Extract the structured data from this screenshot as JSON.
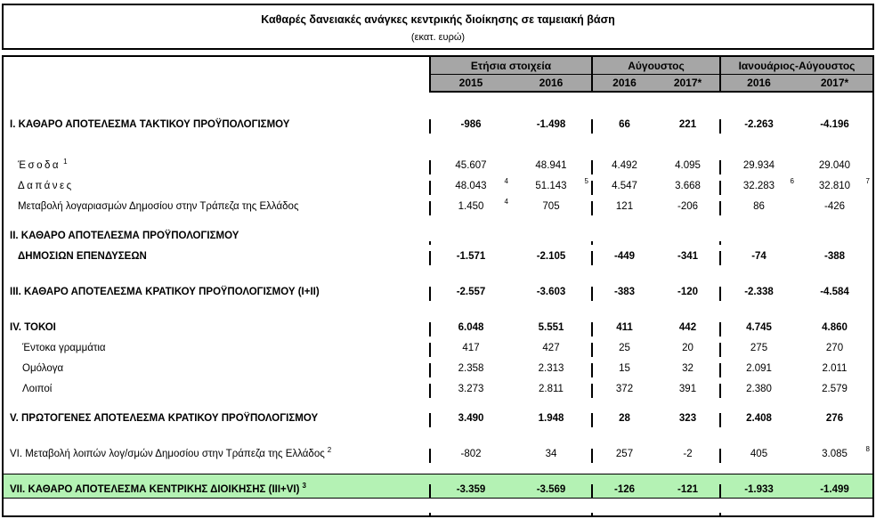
{
  "title": "Καθαρές δανειακές ανάγκες κεντρικής διοίκησης σε ταμειακή βάση",
  "subtitle": "(εκατ. ευρώ)",
  "colors": {
    "header_bg": "#a6a6a6",
    "highlight_green": "#b4f2b4"
  },
  "column_groups": [
    {
      "label": "Ετήσια στοιχεία",
      "years": [
        "2015",
        "2016"
      ]
    },
    {
      "label": "Αύγουστος",
      "years": [
        "2016",
        "2017*"
      ]
    },
    {
      "label": "Ιανουάριος-Αύγουστος",
      "years": [
        "2016",
        "2017*"
      ]
    }
  ],
  "rows": [
    {
      "label": "I. ΚΑΘΑΡΟ ΑΠΟΤΕΛΕΣΜΑ  ΤΑΚΤΙΚΟΥ ΠΡΟΫΠΟΛΟΓΙΣΜΟΥ",
      "bold": true,
      "gap": "xl",
      "values": [
        "-986",
        "-1.498",
        "66",
        "221",
        "-2.263",
        "-4.196"
      ]
    },
    {
      "label": "Έσοδα",
      "label_sup": "1",
      "indent": 1,
      "spaced": true,
      "gap": "xl",
      "values": [
        "45.607",
        "48.941",
        "4.492",
        "4.095",
        "29.934",
        "29.040"
      ]
    },
    {
      "label": "Δαπάνες",
      "indent": 1,
      "spaced": true,
      "values": [
        "48.043",
        "51.143",
        "4.547",
        "3.668",
        "32.283",
        "32.810"
      ],
      "sups": [
        "4",
        "5",
        "",
        "",
        "6",
        "7"
      ]
    },
    {
      "label": "Μεταβολή λογαριασμών Δημοσίου στην Τράπεζα της Ελλάδος",
      "indent": 1,
      "values": [
        "1.450",
        "705",
        "121",
        "-206",
        "86",
        "-426"
      ],
      "sups": [
        "4",
        "",
        "",
        "",
        "",
        ""
      ]
    },
    {
      "label": "II. ΚΑΘΑΡΟ ΑΠΟΤΕΛΕΣΜΑ ΠΡΟΫΠΟΛΟΓΙΣΜΟΥ",
      "bold": true,
      "gap": "m",
      "values": null
    },
    {
      "label": "ΔΗΜΟΣΙΩΝ ΕΠΕΝΔΥΣΕΩΝ",
      "bold": true,
      "indent": 1,
      "values": [
        "-1.571",
        "-2.105",
        "-449",
        "-341",
        "-74",
        "-388"
      ]
    },
    {
      "label": "III. ΚΑΘΑΡΟ ΑΠΟΤΕΛΕΣΜΑ ΚΡΑΤΙΚΟΥ ΠΡΟΫΠΟΛΟΓΙΣΜΟΥ (I+II)",
      "bold": true,
      "gap": "l",
      "values": [
        "-2.557",
        "-3.603",
        "-383",
        "-120",
        "-2.338",
        "-4.584"
      ]
    },
    {
      "label": "IV. ΤΟΚΟΙ",
      "bold": true,
      "gap": "l",
      "values": [
        "6.048",
        "5.551",
        "411",
        "442",
        "4.745",
        "4.860"
      ]
    },
    {
      "label": "Έντοκα γραμμάτια",
      "indent": 2,
      "values": [
        "417",
        "427",
        "25",
        "20",
        "275",
        "270"
      ]
    },
    {
      "label": "Ομόλογα",
      "indent": 2,
      "values": [
        "2.358",
        "2.313",
        "15",
        "32",
        "2.091",
        "2.011"
      ]
    },
    {
      "label": "Λοιποί",
      "indent": 2,
      "values": [
        "3.273",
        "2.811",
        "372",
        "391",
        "2.380",
        "2.579"
      ]
    },
    {
      "label": "V. ΠΡΩΤΟΓΕΝΕΣ ΑΠΟΤΕΛΕΣΜΑ  ΚΡΑΤΙΚΟΥ ΠΡΟΫΠΟΛΟΓΙΣΜΟΥ",
      "bold": true,
      "gap": "m",
      "values": [
        "3.490",
        "1.948",
        "28",
        "323",
        "2.408",
        "276"
      ]
    },
    {
      "label": "VI. Μεταβολή λοιπών λογ/σμών Δημοσίου στην Τράπεζα της Ελλάδος",
      "label_sup": "2",
      "gap": "l",
      "values": [
        "-802",
        "34",
        "257",
        "-2",
        "405",
        "3.085"
      ],
      "sups": [
        "",
        "",
        "",
        "",
        "",
        "8"
      ]
    },
    {
      "label": "VII. ΚΑΘΑΡΟ ΑΠΟΤΕΛΕΣΜΑ ΚΕΝΤΡΙΚΗΣ ΔΙΟΙΚΗΣΗΣ (III+VI)",
      "label_sup": "3",
      "bold": true,
      "green": true,
      "gap": "l",
      "values": [
        "-3.359",
        "-3.569",
        "-126",
        "-121",
        "-1.933",
        "-1.499"
      ]
    }
  ]
}
